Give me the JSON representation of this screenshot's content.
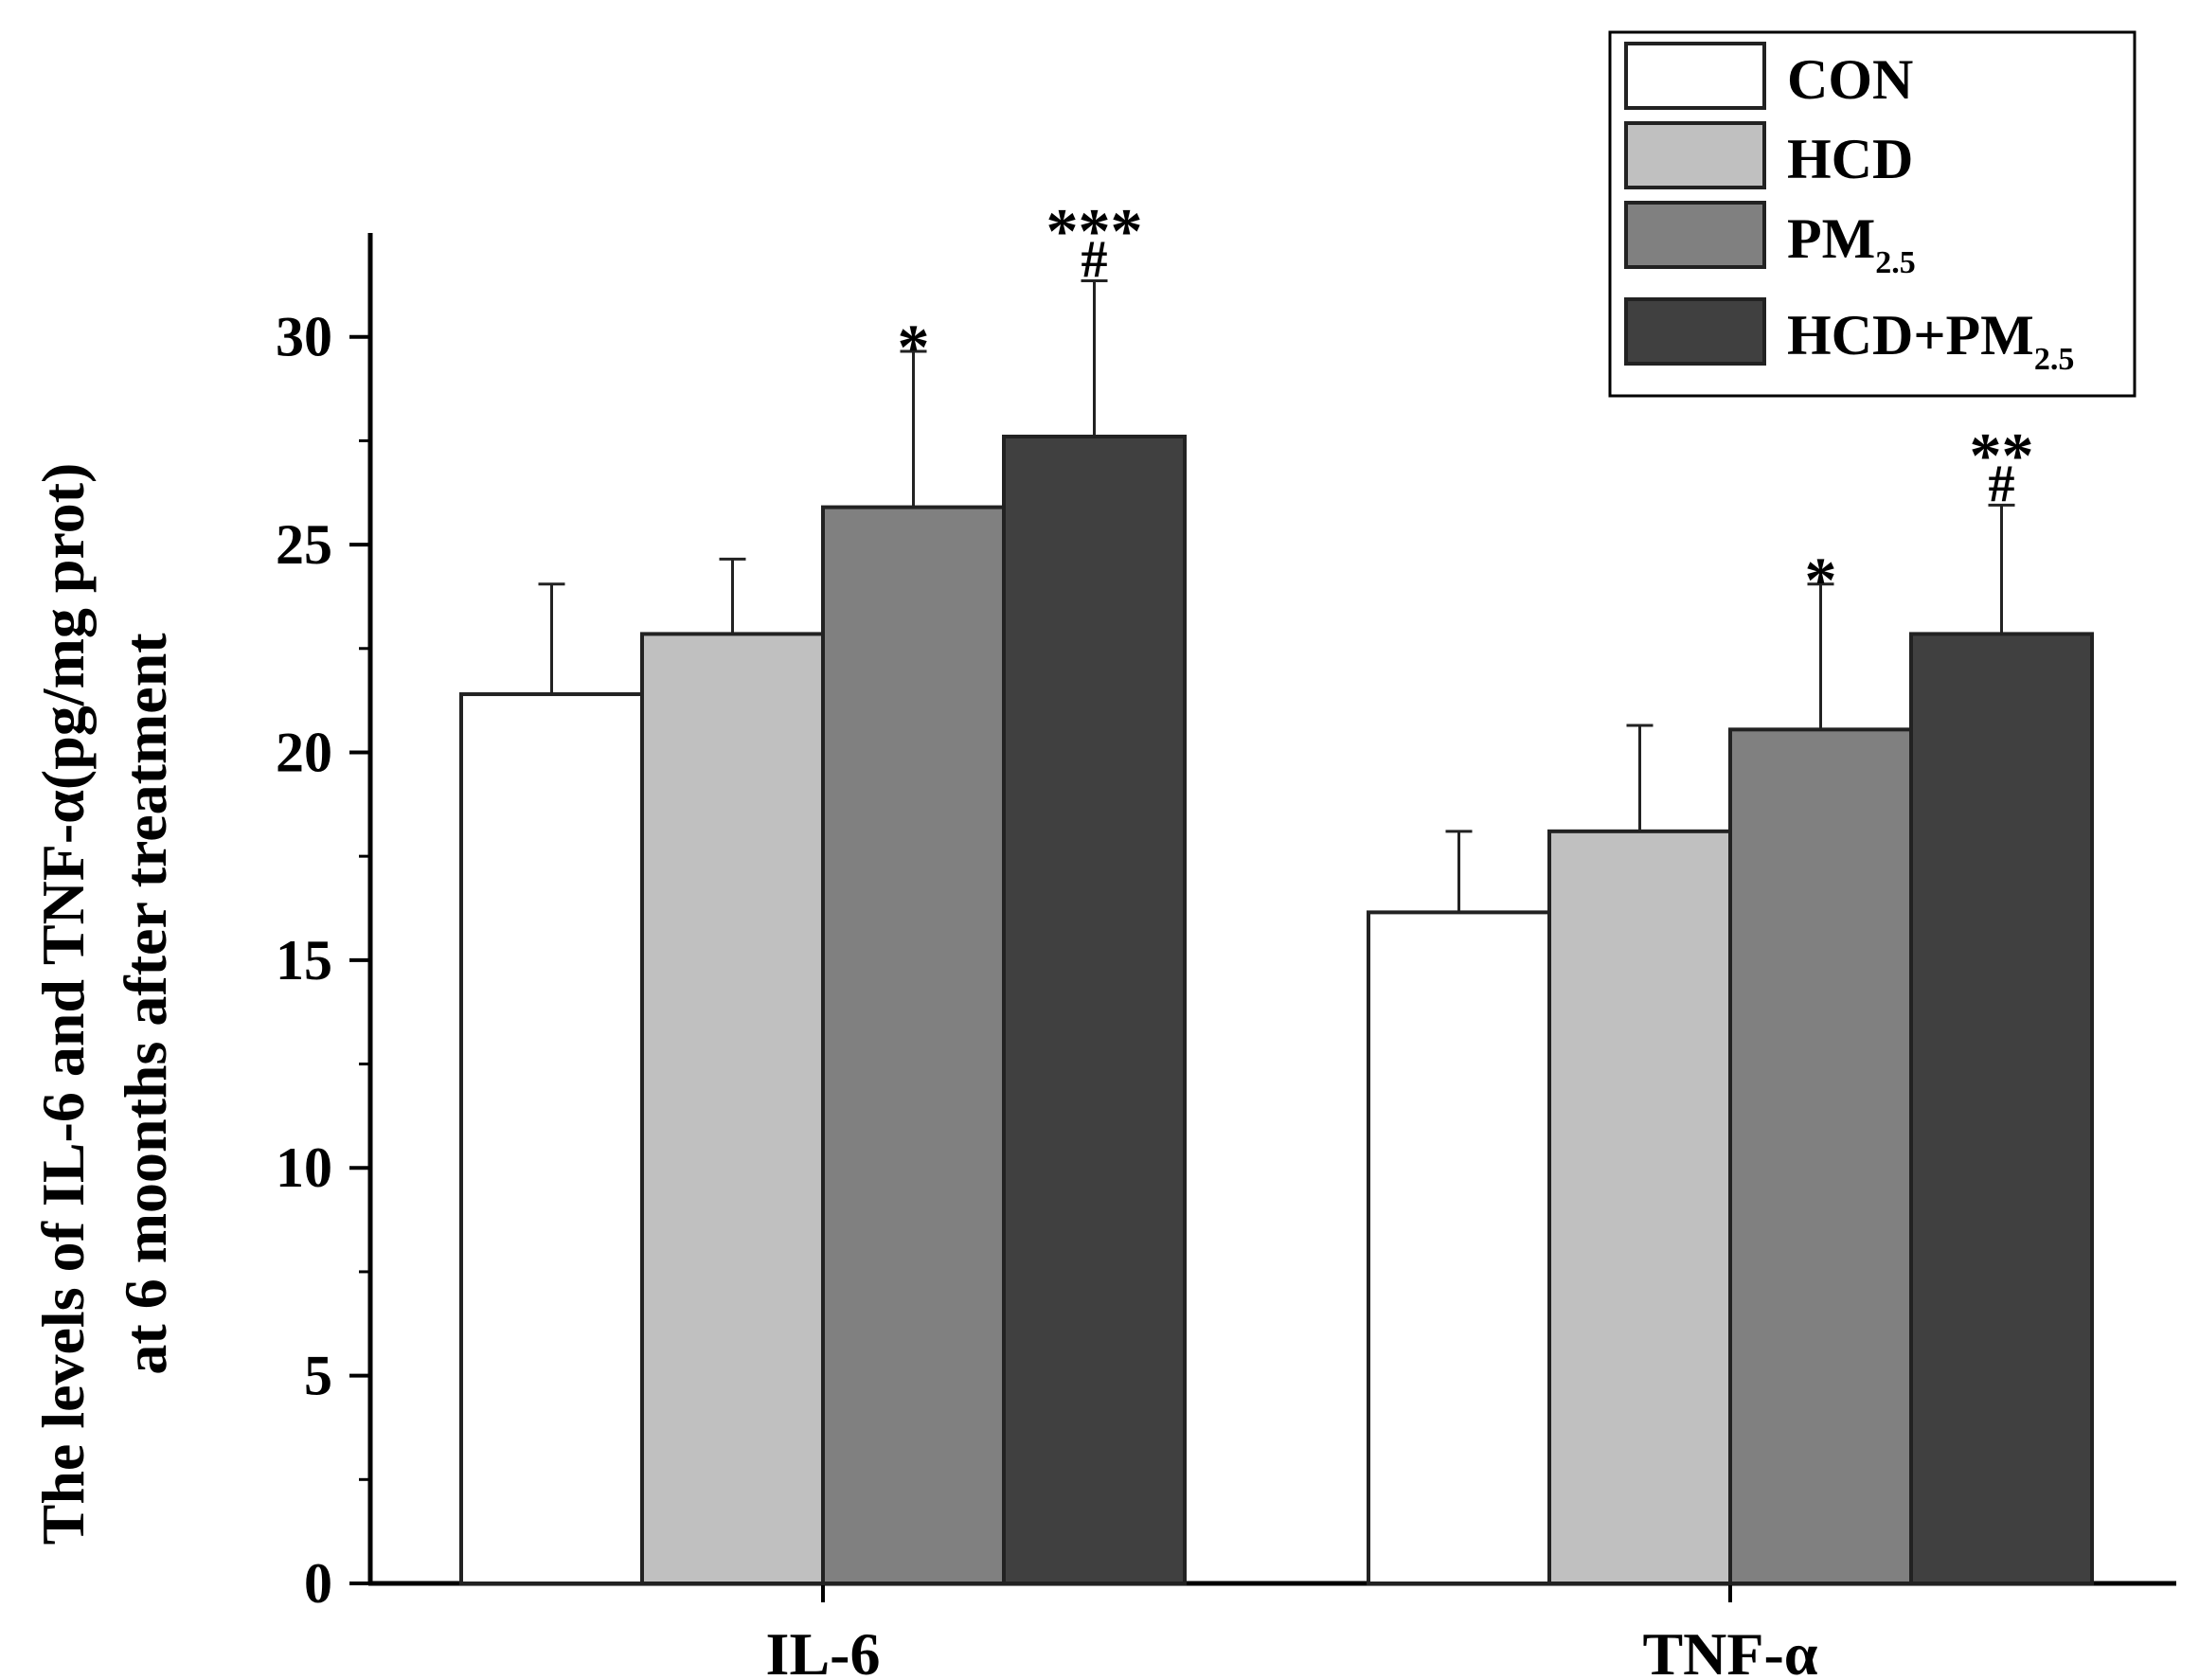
{
  "chart_data": {
    "type": "bar",
    "title": "",
    "categories": [
      "IL-6",
      "TNF-α"
    ],
    "ylabel_line1": "The levels of IL-6 and TNF-α(pg/mg prot)",
    "ylabel_line2": "at 6 moonths after treatment",
    "xlabel": "",
    "ylim": [
      0,
      32.5
    ],
    "yticks": [
      0,
      5,
      10,
      15,
      20,
      25,
      30
    ],
    "ytick_labels": [
      "0",
      "5",
      "10",
      "15",
      "20",
      "25",
      "30"
    ],
    "series": [
      {
        "name": "CON",
        "color": "#ffffff",
        "values": [
          21.4,
          16.15
        ],
        "errors": [
          2.65,
          1.95
        ],
        "annotations": [
          [],
          []
        ]
      },
      {
        "name": "HCD",
        "color": "#c0c0c0",
        "values": [
          22.85,
          18.1
        ],
        "errors": [
          1.8,
          2.55
        ],
        "annotations": [
          [],
          []
        ]
      },
      {
        "name": "PM",
        "subscript": "2.5",
        "color": "#808080",
        "values": [
          25.9,
          20.55
        ],
        "errors": [
          3.75,
          3.5
        ],
        "annotations": [
          [
            "*"
          ],
          [
            "*"
          ]
        ]
      },
      {
        "name": "HCD+PM",
        "subscript": "2.5",
        "color": "#404040",
        "values": [
          27.6,
          22.85
        ],
        "errors": [
          3.75,
          3.1
        ],
        "annotations": [
          [
            "***",
            "#"
          ],
          [
            "**",
            "#"
          ]
        ]
      }
    ],
    "legend_position": "top-right",
    "grid": false
  }
}
